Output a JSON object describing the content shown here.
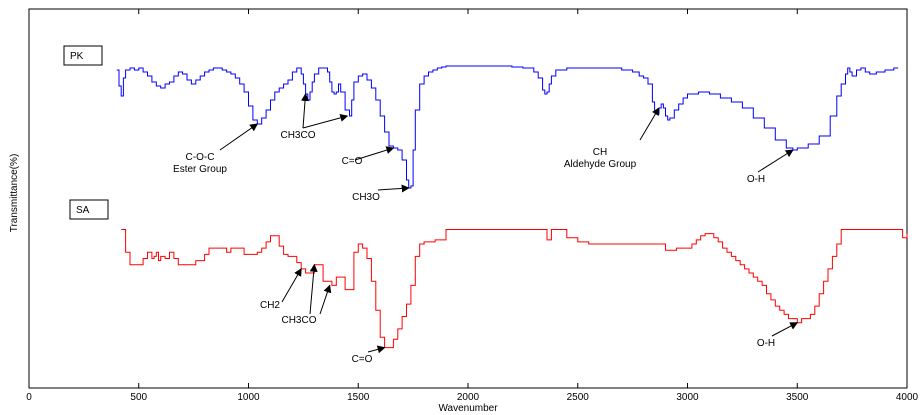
{
  "chart_data": {
    "type": "line",
    "xlabel": "Wavenumber",
    "ylabel": "Transmittance(%)",
    "xlim": [
      0,
      4000
    ],
    "x_ticks": [
      0,
      500,
      1000,
      1500,
      2000,
      2500,
      3000,
      3500,
      4000
    ],
    "grid": false,
    "series": [
      {
        "name": "PK",
        "color": "#0000ff",
        "points": [
          [
            400,
            95
          ],
          [
            410,
            87
          ],
          [
            420,
            82
          ],
          [
            430,
            91
          ],
          [
            440,
            95
          ],
          [
            460,
            96
          ],
          [
            480,
            95
          ],
          [
            500,
            96
          ],
          [
            520,
            94
          ],
          [
            540,
            92
          ],
          [
            560,
            89
          ],
          [
            580,
            87
          ],
          [
            600,
            86
          ],
          [
            620,
            88
          ],
          [
            640,
            89
          ],
          [
            660,
            92
          ],
          [
            680,
            94
          ],
          [
            700,
            93
          ],
          [
            720,
            90
          ],
          [
            740,
            88
          ],
          [
            760,
            90
          ],
          [
            780,
            92
          ],
          [
            800,
            94
          ],
          [
            820,
            95
          ],
          [
            840,
            96
          ],
          [
            860,
            96
          ],
          [
            880,
            95
          ],
          [
            900,
            94
          ],
          [
            920,
            93
          ],
          [
            940,
            91
          ],
          [
            960,
            88
          ],
          [
            980,
            84
          ],
          [
            1000,
            77
          ],
          [
            1020,
            70
          ],
          [
            1040,
            68
          ],
          [
            1060,
            71
          ],
          [
            1080,
            75
          ],
          [
            1100,
            80
          ],
          [
            1120,
            84
          ],
          [
            1140,
            86
          ],
          [
            1160,
            88
          ],
          [
            1180,
            90
          ],
          [
            1200,
            94
          ],
          [
            1220,
            96
          ],
          [
            1240,
            93
          ],
          [
            1250,
            88
          ],
          [
            1260,
            83
          ],
          [
            1270,
            80
          ],
          [
            1280,
            84
          ],
          [
            1290,
            89
          ],
          [
            1300,
            93
          ],
          [
            1320,
            96
          ],
          [
            1340,
            96
          ],
          [
            1360,
            94
          ],
          [
            1370,
            89
          ],
          [
            1380,
            84
          ],
          [
            1390,
            83
          ],
          [
            1400,
            84
          ],
          [
            1410,
            88
          ],
          [
            1420,
            84
          ],
          [
            1440,
            75
          ],
          [
            1460,
            72
          ],
          [
            1470,
            80
          ],
          [
            1480,
            89
          ],
          [
            1500,
            92
          ],
          [
            1520,
            93
          ],
          [
            1540,
            90
          ],
          [
            1560,
            86
          ],
          [
            1580,
            80
          ],
          [
            1600,
            72
          ],
          [
            1620,
            64
          ],
          [
            1640,
            57
          ],
          [
            1660,
            56
          ],
          [
            1680,
            55
          ],
          [
            1700,
            50
          ],
          [
            1720,
            40
          ],
          [
            1730,
            36
          ],
          [
            1740,
            37
          ],
          [
            1750,
            55
          ],
          [
            1760,
            75
          ],
          [
            1780,
            88
          ],
          [
            1800,
            92
          ],
          [
            1820,
            94
          ],
          [
            1840,
            95
          ],
          [
            1860,
            96
          ],
          [
            1880,
            96.5
          ],
          [
            1900,
            97
          ],
          [
            1950,
            97
          ],
          [
            2000,
            97
          ],
          [
            2050,
            97
          ],
          [
            2100,
            97
          ],
          [
            2150,
            97
          ],
          [
            2200,
            96.5
          ],
          [
            2250,
            96
          ],
          [
            2300,
            94
          ],
          [
            2320,
            91
          ],
          [
            2340,
            85
          ],
          [
            2350,
            83
          ],
          [
            2360,
            84
          ],
          [
            2370,
            88
          ],
          [
            2380,
            92
          ],
          [
            2400,
            95
          ],
          [
            2450,
            96
          ],
          [
            2500,
            96
          ],
          [
            2550,
            96
          ],
          [
            2600,
            96
          ],
          [
            2650,
            96
          ],
          [
            2700,
            95
          ],
          [
            2750,
            94
          ],
          [
            2780,
            92
          ],
          [
            2800,
            91
          ],
          [
            2820,
            88
          ],
          [
            2840,
            79
          ],
          [
            2850,
            74
          ],
          [
            2860,
            73
          ],
          [
            2870,
            76
          ],
          [
            2880,
            78
          ],
          [
            2890,
            76
          ],
          [
            2900,
            72
          ],
          [
            2910,
            70
          ],
          [
            2920,
            71
          ],
          [
            2940,
            75
          ],
          [
            2960,
            78
          ],
          [
            2980,
            81
          ],
          [
            3000,
            83
          ],
          [
            3050,
            84
          ],
          [
            3100,
            83
          ],
          [
            3150,
            81
          ],
          [
            3200,
            79
          ],
          [
            3250,
            76
          ],
          [
            3300,
            71
          ],
          [
            3350,
            66
          ],
          [
            3400,
            60
          ],
          [
            3450,
            56
          ],
          [
            3480,
            55
          ],
          [
            3500,
            56
          ],
          [
            3550,
            58
          ],
          [
            3600,
            62
          ],
          [
            3650,
            72
          ],
          [
            3680,
            82
          ],
          [
            3700,
            88
          ],
          [
            3720,
            93
          ],
          [
            3730,
            96
          ],
          [
            3740,
            94
          ],
          [
            3750,
            92
          ],
          [
            3770,
            95
          ],
          [
            3790,
            96
          ],
          [
            3810,
            94
          ],
          [
            3830,
            93
          ],
          [
            3860,
            94
          ],
          [
            3900,
            95
          ],
          [
            3940,
            96
          ],
          [
            3960,
            96
          ]
        ]
      },
      {
        "name": "SA",
        "color": "#ff0000",
        "points": [
          [
            420,
            93
          ],
          [
            440,
            82
          ],
          [
            460,
            76
          ],
          [
            480,
            76
          ],
          [
            500,
            76
          ],
          [
            520,
            79
          ],
          [
            540,
            82
          ],
          [
            560,
            79
          ],
          [
            570,
            80
          ],
          [
            580,
            82
          ],
          [
            590,
            78
          ],
          [
            600,
            80
          ],
          [
            620,
            79
          ],
          [
            640,
            82
          ],
          [
            660,
            79
          ],
          [
            680,
            76
          ],
          [
            700,
            76
          ],
          [
            720,
            76
          ],
          [
            740,
            76
          ],
          [
            760,
            78
          ],
          [
            780,
            78
          ],
          [
            800,
            81
          ],
          [
            820,
            84
          ],
          [
            840,
            84
          ],
          [
            860,
            84
          ],
          [
            880,
            84
          ],
          [
            900,
            82
          ],
          [
            920,
            84
          ],
          [
            940,
            84
          ],
          [
            960,
            84
          ],
          [
            980,
            81
          ],
          [
            1000,
            81
          ],
          [
            1020,
            81
          ],
          [
            1040,
            82
          ],
          [
            1060,
            84
          ],
          [
            1080,
            87
          ],
          [
            1100,
            90
          ],
          [
            1120,
            90
          ],
          [
            1140,
            85
          ],
          [
            1160,
            81
          ],
          [
            1180,
            80
          ],
          [
            1200,
            80
          ],
          [
            1220,
            77
          ],
          [
            1240,
            74
          ],
          [
            1260,
            72
          ],
          [
            1280,
            72
          ],
          [
            1300,
            76
          ],
          [
            1320,
            76
          ],
          [
            1340,
            68
          ],
          [
            1360,
            68
          ],
          [
            1380,
            66
          ],
          [
            1400,
            70
          ],
          [
            1420,
            70
          ],
          [
            1440,
            64
          ],
          [
            1460,
            64
          ],
          [
            1480,
            82
          ],
          [
            1500,
            86
          ],
          [
            1520,
            84
          ],
          [
            1540,
            79
          ],
          [
            1560,
            68
          ],
          [
            1580,
            54
          ],
          [
            1600,
            41
          ],
          [
            1620,
            36
          ],
          [
            1640,
            36
          ],
          [
            1660,
            40
          ],
          [
            1680,
            45
          ],
          [
            1700,
            51
          ],
          [
            1720,
            57
          ],
          [
            1740,
            66
          ],
          [
            1760,
            80
          ],
          [
            1780,
            86
          ],
          [
            1800,
            87
          ],
          [
            1820,
            87
          ],
          [
            1850,
            88
          ],
          [
            1900,
            93
          ],
          [
            2000,
            93
          ],
          [
            2100,
            93
          ],
          [
            2200,
            93
          ],
          [
            2300,
            93
          ],
          [
            2350,
            93
          ],
          [
            2360,
            88
          ],
          [
            2380,
            93
          ],
          [
            2400,
            93
          ],
          [
            2450,
            89
          ],
          [
            2500,
            87
          ],
          [
            2550,
            86
          ],
          [
            2600,
            86
          ],
          [
            2700,
            86
          ],
          [
            2800,
            86
          ],
          [
            2850,
            86
          ],
          [
            2900,
            83
          ],
          [
            2950,
            84
          ],
          [
            3000,
            84
          ],
          [
            3020,
            86
          ],
          [
            3040,
            88
          ],
          [
            3060,
            90
          ],
          [
            3080,
            91
          ],
          [
            3100,
            91
          ],
          [
            3120,
            89
          ],
          [
            3140,
            87
          ],
          [
            3160,
            84
          ],
          [
            3180,
            82
          ],
          [
            3200,
            80
          ],
          [
            3220,
            78
          ],
          [
            3240,
            76
          ],
          [
            3260,
            74
          ],
          [
            3280,
            72
          ],
          [
            3300,
            70
          ],
          [
            3320,
            68
          ],
          [
            3340,
            66
          ],
          [
            3360,
            62
          ],
          [
            3380,
            59
          ],
          [
            3400,
            56
          ],
          [
            3420,
            54
          ],
          [
            3440,
            52
          ],
          [
            3460,
            50
          ],
          [
            3480,
            50
          ],
          [
            3500,
            48
          ],
          [
            3520,
            50
          ],
          [
            3540,
            50
          ],
          [
            3560,
            52
          ],
          [
            3580,
            56
          ],
          [
            3600,
            62
          ],
          [
            3620,
            68
          ],
          [
            3640,
            74
          ],
          [
            3660,
            80
          ],
          [
            3680,
            86
          ],
          [
            3700,
            93
          ],
          [
            3720,
            93
          ],
          [
            3800,
            93
          ],
          [
            3900,
            93
          ],
          [
            3960,
            93
          ],
          [
            3980,
            89
          ],
          [
            4000,
            91
          ]
        ]
      }
    ],
    "panel_labels": [
      "PK",
      "SA"
    ],
    "annotations": [
      {
        "lines": [
          "C-O-C",
          "Ester Group"
        ],
        "series": "PK",
        "arrow_to": [
          1040,
          68
        ]
      },
      {
        "lines": [
          "CH3CO"
        ],
        "series": "PK",
        "arrow_to": [
          1260,
          83
        ]
      },
      {
        "lines": [
          "C=O"
        ],
        "series": "PK",
        "arrow_to": [
          1660,
          56
        ]
      },
      {
        "lines": [
          "CH3O"
        ],
        "series": "PK",
        "arrow_to": [
          1730,
          36
        ]
      },
      {
        "lines": [
          "CH",
          "Aldehyde Group"
        ],
        "series": "PK",
        "arrow_to": [
          2870,
          76
        ]
      },
      {
        "lines": [
          "O-H"
        ],
        "series": "PK",
        "arrow_to": [
          3480,
          55
        ]
      },
      {
        "lines": [
          "CH2"
        ],
        "series": "SA",
        "arrow_to": [
          1240,
          74
        ]
      },
      {
        "lines": [
          "CH3CO"
        ],
        "series": "SA",
        "arrow_to": [
          1300,
          76
        ]
      },
      {
        "lines": [
          "C=O"
        ],
        "series": "SA",
        "arrow_to": [
          1620,
          36
        ]
      },
      {
        "lines": [
          "O-H"
        ],
        "series": "SA",
        "arrow_to": [
          3500,
          48
        ]
      }
    ]
  }
}
